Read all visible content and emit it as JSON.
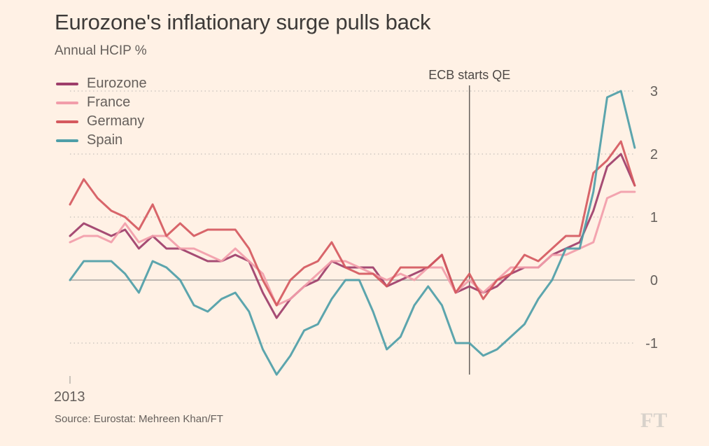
{
  "header": {
    "title": "Eurozone's inflationary surge pulls back",
    "subtitle": "Annual HCIP %"
  },
  "footer": {
    "source": "Source: Eurostat: Mehreen Khan/FT",
    "logo": "FT"
  },
  "chart_data": {
    "type": "line",
    "title": "Eurozone's inflationary surge pulls back",
    "subtitle": "Annual HCIP %",
    "xlabel": "",
    "ylabel": "Annual HCIP %",
    "x_tick_labels": [
      "2013"
    ],
    "y_ticks": [
      3,
      2,
      1,
      0,
      -1
    ],
    "y_tick_labels": [
      "3",
      "2",
      "1",
      "0",
      "-1"
    ],
    "ylim": [
      -1.5,
      3.1
    ],
    "y_axis_side": "right",
    "grid": "dotted horizontal",
    "legend_position": "top-left",
    "annotation": {
      "label": "ECB starts QE",
      "x_index": 29
    },
    "series": [
      {
        "name": "Eurozone",
        "color": "#9e3e6a",
        "values": [
          0.7,
          0.9,
          0.8,
          0.7,
          0.8,
          0.5,
          0.7,
          0.5,
          0.5,
          0.4,
          0.3,
          0.3,
          0.4,
          0.3,
          -0.2,
          -0.6,
          -0.3,
          -0.1,
          0.0,
          0.3,
          0.2,
          0.2,
          0.2,
          -0.1,
          0.0,
          0.1,
          0.2,
          0.4,
          -0.2,
          -0.1,
          -0.2,
          -0.1,
          0.1,
          0.2,
          0.2,
          0.4,
          0.5,
          0.6,
          1.1,
          1.8,
          2.0,
          1.5
        ]
      },
      {
        "name": "France",
        "color": "#f29daa",
        "values": [
          0.6,
          0.7,
          0.7,
          0.6,
          0.9,
          0.6,
          0.7,
          0.7,
          0.5,
          0.5,
          0.4,
          0.3,
          0.5,
          0.3,
          0.1,
          -0.4,
          -0.3,
          -0.1,
          0.1,
          0.3,
          0.3,
          0.2,
          0.1,
          0.0,
          0.1,
          0.0,
          0.2,
          0.2,
          -0.2,
          0.0,
          -0.2,
          0.0,
          0.2,
          0.2,
          0.2,
          0.4,
          0.4,
          0.5,
          0.6,
          1.3,
          1.4,
          1.4
        ]
      },
      {
        "name": "Germany",
        "color": "#d5595f",
        "values": [
          1.2,
          1.6,
          1.3,
          1.1,
          1.0,
          0.8,
          1.2,
          0.7,
          0.9,
          0.7,
          0.8,
          0.8,
          0.8,
          0.5,
          0.0,
          -0.4,
          0.0,
          0.2,
          0.3,
          0.6,
          0.2,
          0.1,
          0.1,
          -0.1,
          0.2,
          0.2,
          0.2,
          0.4,
          -0.2,
          0.1,
          -0.3,
          0.0,
          0.1,
          0.4,
          0.3,
          0.5,
          0.7,
          0.7,
          1.7,
          1.9,
          2.2,
          1.5
        ]
      },
      {
        "name": "Spain",
        "color": "#4e9ea8",
        "values": [
          0.0,
          0.3,
          0.3,
          0.3,
          0.1,
          -0.2,
          0.3,
          0.2,
          0.0,
          -0.4,
          -0.5,
          -0.3,
          -0.2,
          -0.5,
          -1.1,
          -1.5,
          -1.2,
          -0.8,
          -0.7,
          -0.3,
          0.0,
          0.0,
          -0.5,
          -1.1,
          -0.9,
          -0.4,
          -0.1,
          -0.4,
          -1.0,
          -1.0,
          -1.2,
          -1.1,
          -0.9,
          -0.7,
          -0.3,
          0.0,
          0.5,
          0.5,
          1.4,
          2.9,
          3.0,
          2.1
        ]
      }
    ]
  }
}
